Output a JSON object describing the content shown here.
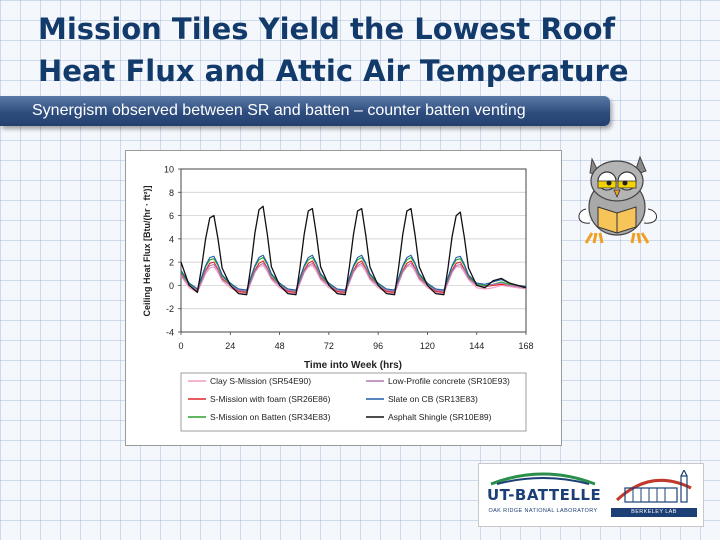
{
  "slide": {
    "title_line1": "Mission Tiles Yield the Lowest Roof",
    "title_line2": "Heat Flux and Attic Air Temperature",
    "subtitle": "Synergism observed between SR and batten – counter batten venting"
  },
  "logos": {
    "ut_battelle": "UT-BATTELLE",
    "ut_battelle_sub": "OAK RIDGE NATIONAL LABORATORY",
    "berkeley_sub": "BERKELEY LAB"
  },
  "illustration": {
    "icon": "owl-reading-book-icon"
  },
  "chart_data": {
    "type": "line",
    "title": "",
    "xlabel": "Time into Week (hrs)",
    "ylabel": "Ceiling Heat Flux [Btu/(hr · ft²)]",
    "xlim": [
      0,
      168
    ],
    "ylim": [
      -4,
      10
    ],
    "xticks": [
      0,
      24,
      48,
      72,
      96,
      120,
      144,
      168
    ],
    "yticks": [
      -4,
      -2,
      0,
      2,
      4,
      6,
      8,
      10
    ],
    "grid": true,
    "legend_placement": "bottom",
    "x": [
      0,
      4,
      8,
      10,
      12,
      14,
      16,
      18,
      20,
      24,
      28,
      32,
      34,
      36,
      38,
      40,
      42,
      44,
      48,
      52,
      56,
      58,
      60,
      62,
      64,
      66,
      68,
      72,
      76,
      80,
      82,
      84,
      86,
      88,
      90,
      92,
      96,
      100,
      104,
      106,
      108,
      110,
      112,
      114,
      116,
      120,
      124,
      128,
      130,
      132,
      134,
      136,
      138,
      140,
      144,
      148,
      152,
      156,
      160,
      164,
      168
    ],
    "series": [
      {
        "name": "Clay S-Mission (SR54E90)",
        "color": "#f49ac1",
        "values": [
          0.8,
          -0.2,
          -0.6,
          0.2,
          1.0,
          1.5,
          1.6,
          1.1,
          0.4,
          -0.2,
          -0.6,
          -0.7,
          0.2,
          1.1,
          1.6,
          1.7,
          1.2,
          0.5,
          -0.2,
          -0.6,
          -0.7,
          0.2,
          1.1,
          1.6,
          1.7,
          1.2,
          0.5,
          -0.2,
          -0.6,
          -0.7,
          0.2,
          1.1,
          1.6,
          1.7,
          1.2,
          0.5,
          -0.2,
          -0.6,
          -0.7,
          0.2,
          1.1,
          1.6,
          1.7,
          1.2,
          0.5,
          -0.2,
          -0.6,
          -0.7,
          0.2,
          1.1,
          1.6,
          1.6,
          1.1,
          0.5,
          -0.2,
          -0.3,
          -0.2,
          0.0,
          -0.1,
          -0.2,
          -0.3
        ]
      },
      {
        "name": "S-Mission with foam (SR26E86)",
        "color": "#e0252b",
        "values": [
          1.0,
          0.0,
          -0.5,
          0.4,
          1.3,
          1.9,
          2.0,
          1.4,
          0.6,
          0.0,
          -0.5,
          -0.6,
          0.4,
          1.3,
          1.9,
          2.1,
          1.5,
          0.7,
          0.0,
          -0.5,
          -0.6,
          0.4,
          1.3,
          1.9,
          2.1,
          1.5,
          0.7,
          0.0,
          -0.5,
          -0.6,
          0.4,
          1.3,
          1.9,
          2.1,
          1.5,
          0.7,
          0.0,
          -0.5,
          -0.6,
          0.4,
          1.3,
          1.9,
          2.1,
          1.5,
          0.7,
          0.0,
          -0.5,
          -0.6,
          0.4,
          1.3,
          1.9,
          2.0,
          1.4,
          0.7,
          0.0,
          -0.1,
          0.0,
          0.1,
          0.0,
          -0.1,
          -0.2
        ]
      },
      {
        "name": "S-Mission on Batten (SR34E83)",
        "color": "#2ca02c",
        "values": [
          1.2,
          0.1,
          -0.4,
          0.6,
          1.6,
          2.2,
          2.3,
          1.7,
          0.8,
          0.1,
          -0.4,
          -0.5,
          0.6,
          1.6,
          2.2,
          2.4,
          1.8,
          0.9,
          0.1,
          -0.4,
          -0.5,
          0.6,
          1.6,
          2.2,
          2.4,
          1.8,
          0.9,
          0.1,
          -0.4,
          -0.5,
          0.6,
          1.6,
          2.2,
          2.4,
          1.8,
          0.9,
          0.1,
          -0.4,
          -0.5,
          0.6,
          1.6,
          2.2,
          2.4,
          1.8,
          0.9,
          0.1,
          -0.4,
          -0.5,
          0.6,
          1.6,
          2.2,
          2.3,
          1.7,
          0.8,
          0.1,
          0.0,
          0.1,
          0.3,
          0.1,
          0.0,
          -0.1
        ]
      },
      {
        "name": "Low-Profile concrete (SR10E93)",
        "color": "#b07ab6",
        "values": [
          0.9,
          0.0,
          -0.4,
          0.3,
          1.2,
          1.7,
          1.8,
          1.3,
          0.5,
          0.0,
          -0.4,
          -0.5,
          0.3,
          1.2,
          1.7,
          1.9,
          1.4,
          0.6,
          0.0,
          -0.4,
          -0.5,
          0.3,
          1.2,
          1.7,
          1.9,
          1.4,
          0.6,
          0.0,
          -0.4,
          -0.5,
          0.3,
          1.2,
          1.7,
          1.9,
          1.4,
          0.6,
          0.0,
          -0.4,
          -0.5,
          0.3,
          1.2,
          1.7,
          1.9,
          1.4,
          0.6,
          0.0,
          -0.4,
          -0.5,
          0.3,
          1.2,
          1.7,
          1.8,
          1.3,
          0.6,
          0.0,
          -0.1,
          0.1,
          0.2,
          0.0,
          -0.1,
          -0.2
        ]
      },
      {
        "name": "Slate on CB (SR13E83)",
        "color": "#1f5fa8",
        "values": [
          1.3,
          0.2,
          -0.3,
          0.7,
          1.7,
          2.4,
          2.5,
          1.8,
          0.9,
          0.2,
          -0.3,
          -0.4,
          0.7,
          1.7,
          2.4,
          2.6,
          1.9,
          1.0,
          0.2,
          -0.3,
          -0.4,
          0.7,
          1.7,
          2.4,
          2.6,
          1.9,
          1.0,
          0.2,
          -0.3,
          -0.4,
          0.7,
          1.7,
          2.4,
          2.6,
          1.9,
          1.0,
          0.2,
          -0.3,
          -0.4,
          0.7,
          1.7,
          2.4,
          2.6,
          1.9,
          1.0,
          0.2,
          -0.3,
          -0.4,
          0.7,
          1.7,
          2.4,
          2.5,
          1.8,
          0.9,
          0.2,
          0.1,
          0.3,
          0.5,
          0.2,
          0.0,
          -0.1
        ]
      },
      {
        "name": "Asphalt Shingle (SR10E89)",
        "color": "#111111",
        "values": [
          2.0,
          0.0,
          -0.6,
          1.5,
          4.0,
          5.8,
          6.0,
          4.0,
          1.5,
          0.0,
          -0.7,
          -0.8,
          1.6,
          4.5,
          6.5,
          6.8,
          4.4,
          1.6,
          0.0,
          -0.7,
          -0.8,
          1.6,
          4.4,
          6.4,
          6.6,
          4.3,
          1.6,
          0.0,
          -0.7,
          -0.8,
          1.6,
          4.4,
          6.4,
          6.6,
          4.3,
          1.6,
          0.0,
          -0.7,
          -0.8,
          1.6,
          4.4,
          6.4,
          6.6,
          4.3,
          1.6,
          0.0,
          -0.7,
          -0.8,
          1.5,
          4.2,
          6.0,
          6.3,
          4.1,
          1.5,
          0.0,
          -0.2,
          0.4,
          0.6,
          0.2,
          0.0,
          -0.2
        ]
      }
    ]
  }
}
